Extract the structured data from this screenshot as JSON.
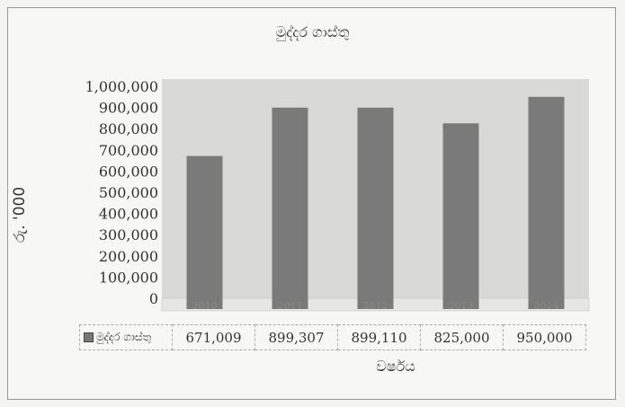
{
  "chart_data": {
    "type": "bar",
    "title": "මුද්දර ගාස්තු",
    "xlabel": "වර්ෂය",
    "ylabel": "රු. '000",
    "categories": [
      "2010",
      "2011",
      "2012",
      "2013",
      "2014"
    ],
    "series": [
      {
        "name": "මුද්දර ගාස්තු",
        "values": [
          671009,
          899307,
          899110,
          825000,
          950000
        ]
      }
    ],
    "value_labels": [
      "671,009",
      "899,307",
      "899,110",
      "825,000",
      "950,000"
    ],
    "yticks": [
      "0",
      "100,000",
      "200,000",
      "300,000",
      "400,000",
      "500,000",
      "600,000",
      "700,000",
      "800,000",
      "900,000",
      "1,000,000"
    ],
    "ylim": [
      0,
      1000000
    ],
    "grid": false,
    "legend": "data-table",
    "colors": {
      "bar": "#7a7a7a",
      "plot_bg": "#d9d9d7"
    }
  }
}
